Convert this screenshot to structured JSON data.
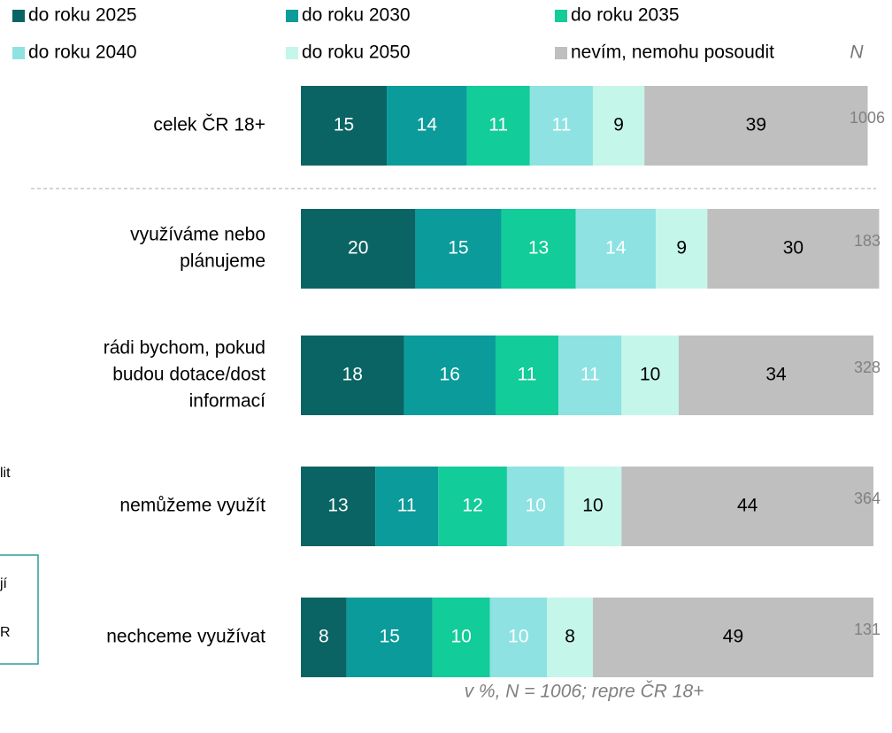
{
  "chart_data": {
    "type": "stacked-bar-horizontal",
    "categories": [
      [
        "celek ČR 18+"
      ],
      [
        "využíváme nebo",
        "plánujeme"
      ],
      [
        "rádi bychom, pokud",
        "budou dotace/dost",
        "informací"
      ],
      [
        "nemůžeme využít"
      ],
      [
        "nechceme využívat"
      ]
    ],
    "series": [
      {
        "name": "do roku 2025",
        "color": "#0b6464",
        "text_color": "#ffffff",
        "values": [
          15,
          20,
          18,
          13,
          8
        ]
      },
      {
        "name": "do roku 2030",
        "color": "#0b9b9b",
        "text_color": "#ffffff",
        "values": [
          14,
          15,
          16,
          11,
          15
        ]
      },
      {
        "name": "do roku 2035",
        "color": "#12cc99",
        "text_color": "#ffffff",
        "values": [
          11,
          13,
          11,
          12,
          10
        ]
      },
      {
        "name": "do roku 2040",
        "color": "#8ee2e2",
        "text_color": "#ffffff",
        "values": [
          11,
          14,
          11,
          10,
          10
        ]
      },
      {
        "name": "do roku 2050",
        "color": "#c4f6e9",
        "text_color": "#000000",
        "values": [
          9,
          9,
          10,
          10,
          8
        ]
      },
      {
        "name": "nevím, nemohu posoudit",
        "color": "#bfbfbf",
        "text_color": "#000000",
        "values": [
          39,
          30,
          34,
          44,
          49
        ]
      }
    ],
    "n_label": "N",
    "n": [
      1006,
      183,
      328,
      364,
      131
    ],
    "footnote": "v %, N = 1006; repre ČR 18+",
    "annotations": [
      "lit",
      "jí",
      "R"
    ]
  }
}
